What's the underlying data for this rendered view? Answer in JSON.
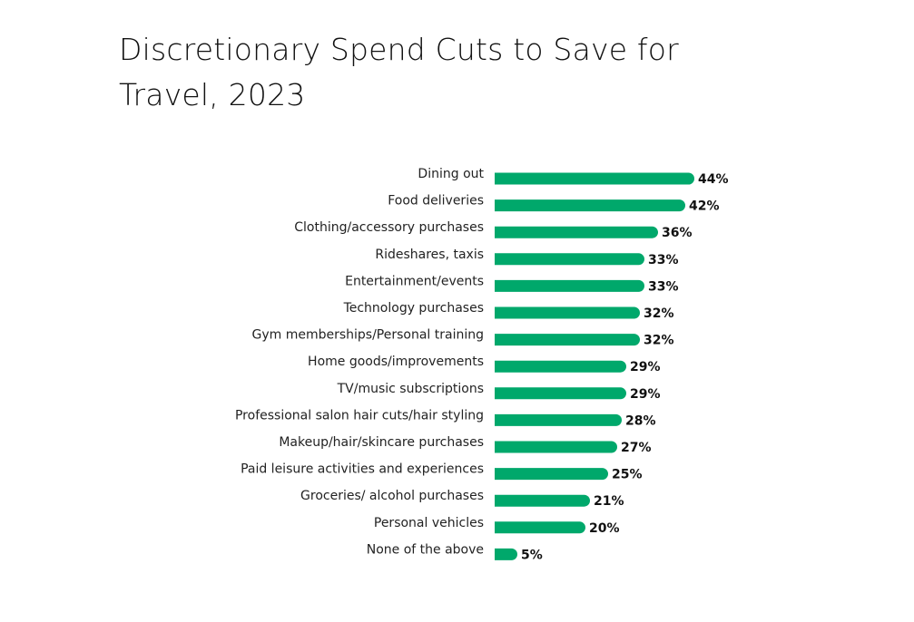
{
  "chart_data": {
    "type": "bar",
    "orientation": "horizontal",
    "title": "Discretionary Spend Cuts to Save for Travel, 2023",
    "categories": [
      "Dining out",
      "Food deliveries",
      "Clothing/accessory purchases",
      "Rideshares, taxis",
      "Entertainment/events",
      "Technology purchases",
      "Gym memberships/Personal training",
      "Home goods/improvements",
      "TV/music subscriptions",
      "Professional salon hair cuts/hair styling",
      "Makeup/hair/skincare purchases",
      "Paid leisure activities and experiences",
      "Groceries/ alcohol purchases",
      "Personal vehicles",
      "None of the above"
    ],
    "values": [
      44,
      42,
      36,
      33,
      33,
      32,
      32,
      29,
      29,
      28,
      27,
      25,
      21,
      20,
      5
    ],
    "value_labels": [
      "44%",
      "42%",
      "36%",
      "33%",
      "33%",
      "32%",
      "32%",
      "29%",
      "29%",
      "28%",
      "27%",
      "25%",
      "21%",
      "20%",
      "5%"
    ],
    "unit": "%",
    "xlim": [
      0,
      44
    ],
    "grid": false,
    "bar_color": "#00a86b"
  }
}
